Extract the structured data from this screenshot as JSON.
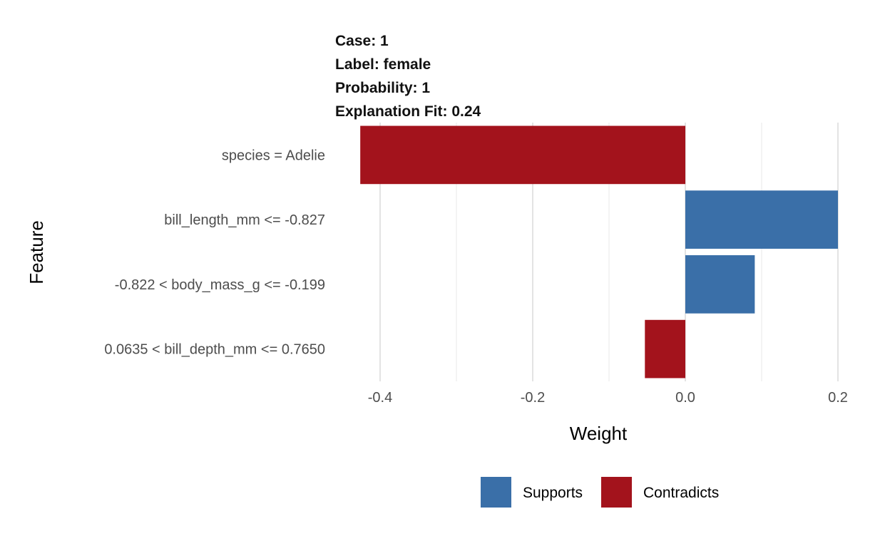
{
  "header": {
    "case": "Case: 1",
    "label": "Label: female",
    "probability": "Probability: 1",
    "fit": "Explanation Fit: 0.24"
  },
  "chart_data": {
    "type": "bar",
    "orientation": "horizontal",
    "xlabel": "Weight",
    "ylabel": "Feature",
    "xlim": [
      -0.43,
      0.2
    ],
    "xticks": [
      -0.4,
      -0.2,
      0.0,
      0.2
    ],
    "xtick_labels": [
      "-0.4",
      "-0.2",
      "0.0",
      "0.2"
    ],
    "grid": true,
    "legend_position": "bottom",
    "categories": [
      "species = Adelie",
      "bill_length_mm <= -0.827",
      "-0.822 < body_mass_g <= -0.199",
      "0.0635 < bill_depth_mm <= 0.7650"
    ],
    "values": [
      -0.426,
      0.2,
      0.091,
      -0.053
    ],
    "bar_groups": [
      "Contradicts",
      "Supports",
      "Supports",
      "Contradicts"
    ],
    "legend": [
      {
        "name": "Supports",
        "color": "#3a6fa8"
      },
      {
        "name": "Contradicts",
        "color": "#a3131c"
      }
    ]
  }
}
